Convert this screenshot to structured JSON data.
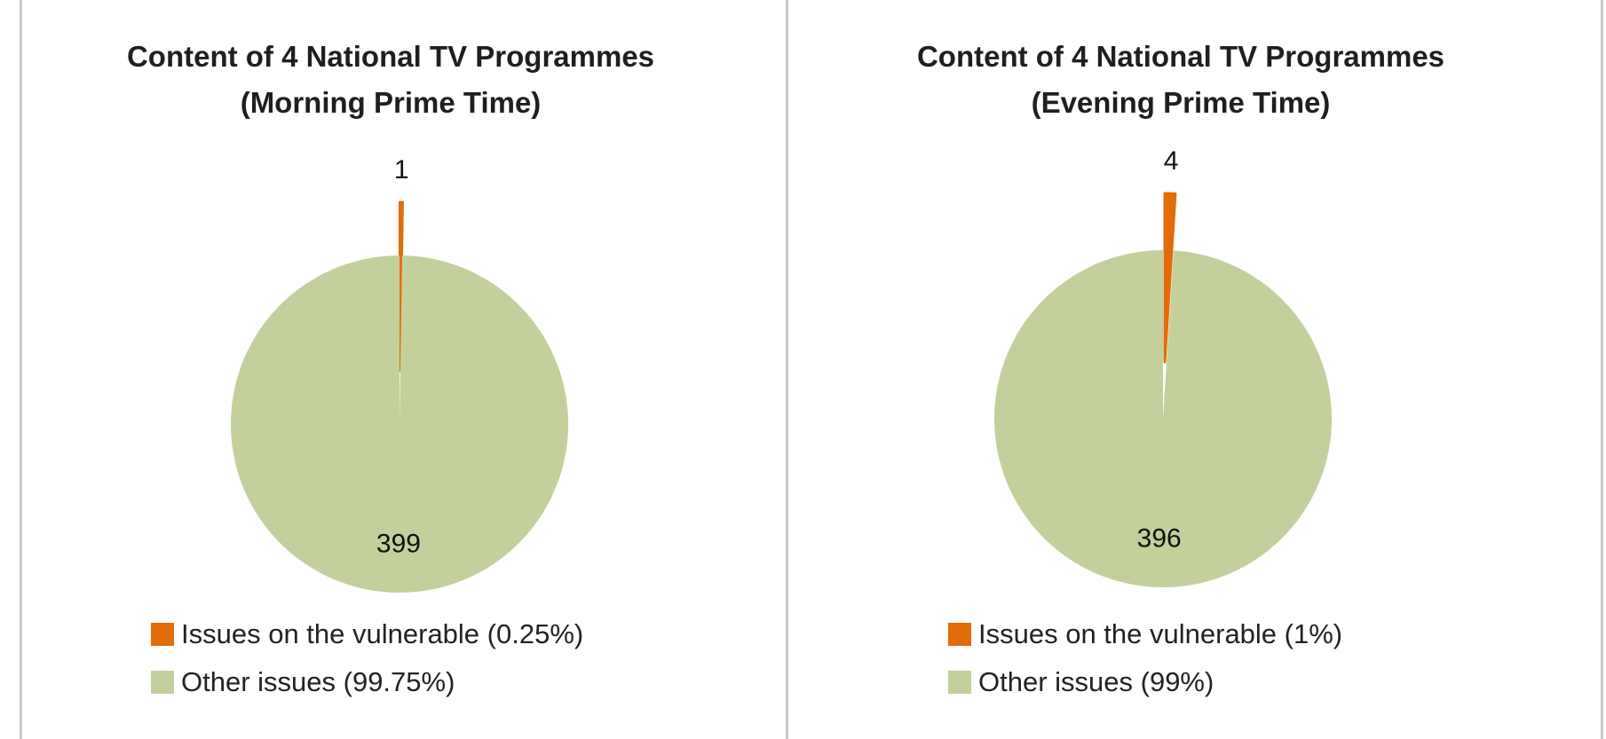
{
  "chart_data": [
    {
      "type": "pie",
      "title_line1": "Content of 4 National TV Programmes",
      "title_line2": "(Morning Prime Time)",
      "slices": [
        {
          "label": "Issues on the vulnerable (0.25%)",
          "value": 1,
          "color": "#e36c0a",
          "exploded": true
        },
        {
          "label": "Other issues (99.75%)",
          "value": 399,
          "color": "#c3d09b",
          "exploded": false
        }
      ]
    },
    {
      "type": "pie",
      "title_line1": "Content of 4 National TV Programmes",
      "title_line2": "(Evening Prime Time)",
      "slices": [
        {
          "label": "Issues on the vulnerable (1%)",
          "value": 4,
          "color": "#e36c0a",
          "exploded": true
        },
        {
          "label": "Other issues (99%)",
          "value": 396,
          "color": "#c3d09b",
          "exploded": false
        }
      ]
    }
  ]
}
